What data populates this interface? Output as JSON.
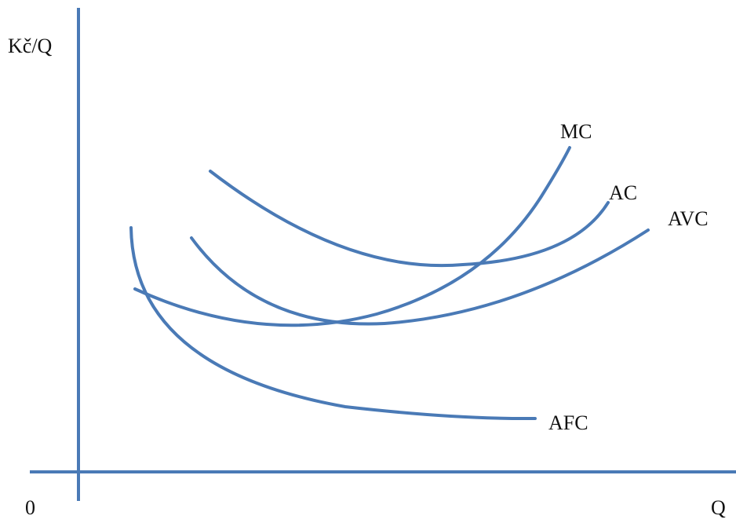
{
  "axes": {
    "y_label": "Kč/Q",
    "x_label": "Q",
    "origin_label": "0"
  },
  "curves": [
    {
      "label": "MC"
    },
    {
      "label": "AC"
    },
    {
      "label": "AVC"
    },
    {
      "label": "AFC"
    }
  ],
  "style": {
    "line_color": "#4A7AB6",
    "text_color": "#111111"
  }
}
